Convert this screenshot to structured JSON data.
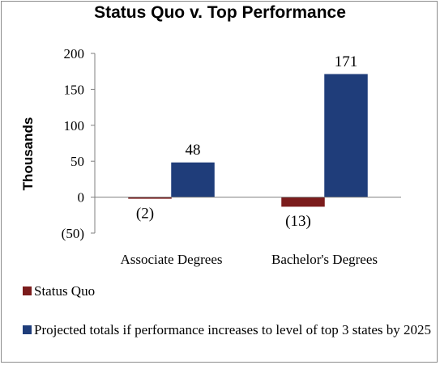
{
  "chart_data": {
    "type": "bar",
    "title": "Status Quo v. Top Performance",
    "ylabel": "Thousands",
    "xlabel": "",
    "ylim": [
      -50,
      200
    ],
    "yticks": [
      200,
      150,
      100,
      50,
      0,
      -50
    ],
    "ytick_labels": [
      "200",
      "150",
      "100",
      "50",
      "0",
      "(50)"
    ],
    "categories": [
      "Associate Degrees",
      "Bachelor's Degrees"
    ],
    "series": [
      {
        "name": "Status Quo",
        "values": [
          -2,
          -13
        ],
        "labels": [
          "(2)",
          "(13)"
        ],
        "color": "#7b1c1c"
      },
      {
        "name": "Projected totals if performance increases to level of top 3 states by 2025",
        "values": [
          48,
          171
        ],
        "labels": [
          "48",
          "171"
        ],
        "color": "#1f3d7a"
      }
    ],
    "legend": "bottom-left",
    "grid": false
  }
}
